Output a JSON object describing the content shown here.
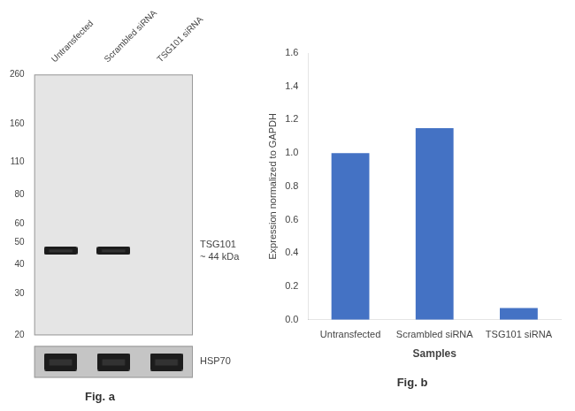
{
  "chart_data": [
    {
      "type": "blot",
      "title": "Fig. a",
      "categories": [
        "Untransfected",
        "Scrambled siRNA",
        "TSG101 siRNA"
      ],
      "log": "y",
      "ylim": [
        20,
        260
      ],
      "yticks": [
        260,
        160,
        110,
        80,
        60,
        50,
        40,
        30,
        20
      ],
      "series": [
        {
          "name": "TSG101",
          "color": "#1c1c1c",
          "values": [
            46,
            46,
            null
          ]
        },
        {
          "name": "HSP70",
          "color": "#1c1c1c",
          "values": [
            true,
            true,
            true
          ]
        }
      ],
      "annotations": [
        "~ 44 kDa"
      ]
    },
    {
      "type": "bar",
      "title": "Fig. b",
      "categories": [
        "Untransfected",
        "Scrambled siRNA",
        "TSG101 siRNA"
      ],
      "values": [
        1.0,
        1.15,
        0.07
      ],
      "color": "#4472c4",
      "xlabel": "Samples",
      "ylabel": "Expression normalized to GAPDH",
      "ylim": [
        0,
        1.6
      ],
      "yticks": [
        {
          "value": 0,
          "label": "0.0"
        },
        0.2,
        0.4,
        0.6,
        0.8,
        {
          "value": 1.0,
          "label": "1.0"
        },
        1.2,
        1.4,
        1.6
      ],
      "grid": false
    }
  ]
}
